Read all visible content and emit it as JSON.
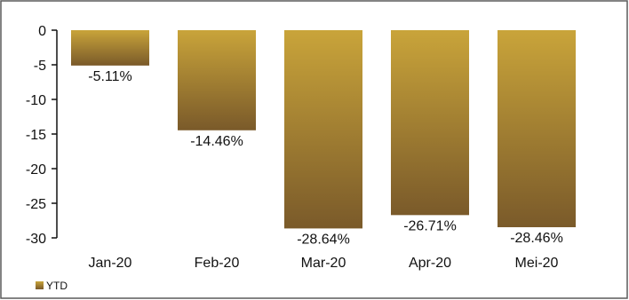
{
  "chart_data": {
    "type": "bar",
    "categories": [
      "Jan-20",
      "Feb-20",
      "Mar-20",
      "Apr-20",
      "Mei-20"
    ],
    "series": [
      {
        "name": "YTD",
        "values": [
          -5.11,
          -14.46,
          -28.64,
          -26.71,
          -28.46
        ]
      }
    ],
    "data_labels": [
      "-5.11%",
      "-14.46%",
      "-28.64%",
      "-26.71%",
      "-28.46%"
    ],
    "y_ticks": [
      "0",
      "-5",
      "-10",
      "-15",
      "-20",
      "-25",
      "-30"
    ],
    "ylim": [
      -30,
      0
    ],
    "grid": false,
    "legend_position": "bottom-left",
    "colors": {
      "bar_top": "#c9a43a",
      "bar_bottom": "#7a5a2a",
      "frame": "#5a5a5a",
      "axis": "#111111"
    }
  }
}
